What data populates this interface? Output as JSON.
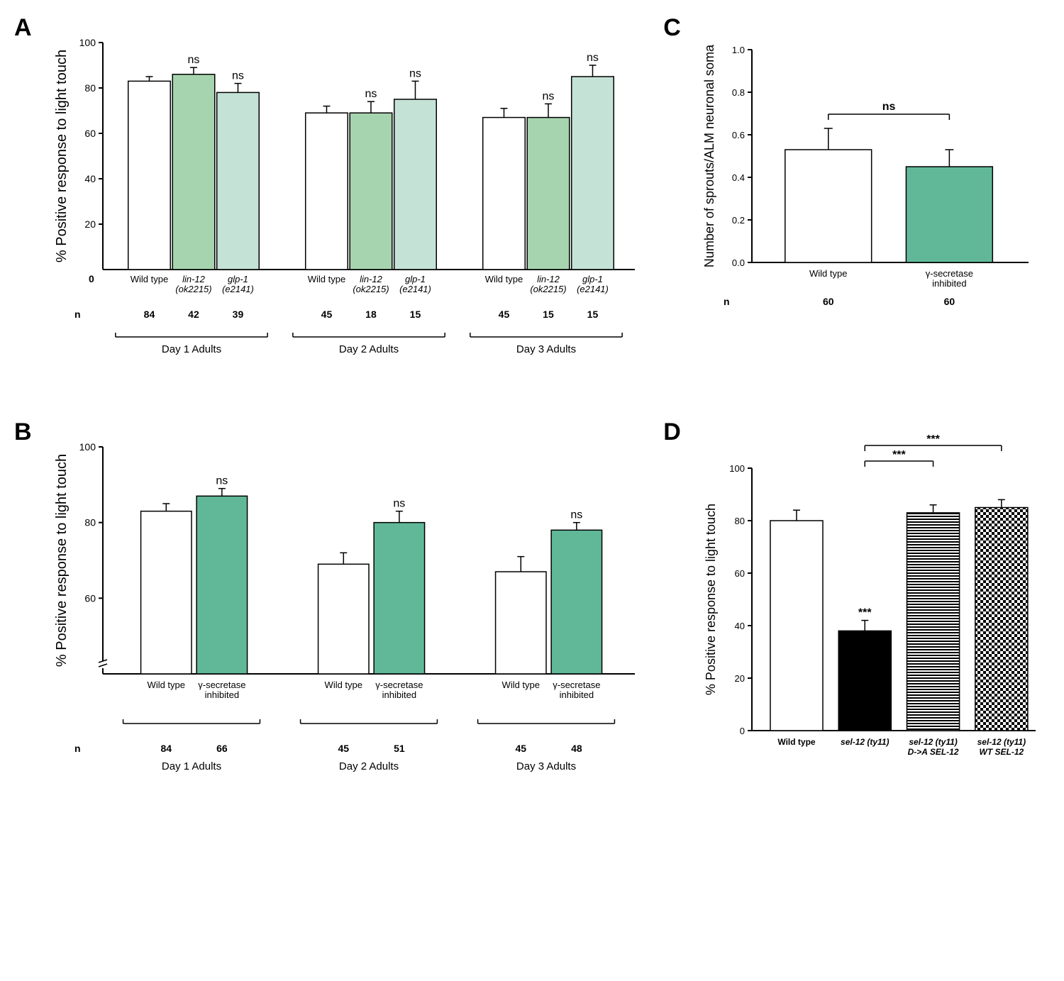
{
  "colors": {
    "white": "#ffffff",
    "lightGreen": "#a6d4ae",
    "paleGreen": "#c5e2d6",
    "midGreen": "#61b898",
    "black": "#000000",
    "axis": "#000000"
  },
  "font": {
    "axisTitle": 20,
    "axisTitleSmall": 18,
    "tick": 14,
    "tickSmall": 13,
    "category": 13,
    "categorySmall": 12,
    "sig": 16,
    "n": 14,
    "panelLabel": 34,
    "group": 15
  },
  "panelA": {
    "label": "A",
    "yTitle": "% Positive response to light touch",
    "ylim": [
      0,
      100
    ],
    "ytick_step": 20,
    "groups": [
      "Day 1 Adults",
      "Day 2 Adults",
      "Day 3 Adults"
    ],
    "bars": [
      {
        "cat": "Wild type",
        "val": 83,
        "err": 2,
        "fill": "#ffffff",
        "n": "84",
        "sig": ""
      },
      {
        "cat": "lin-12\n(ok2215)",
        "val": 86,
        "err": 3,
        "fill": "#a6d4ae",
        "n": "42",
        "sig": "ns",
        "italic": true
      },
      {
        "cat": "glp-1\n(e2141)",
        "val": 78,
        "err": 4,
        "fill": "#c5e2d6",
        "n": "39",
        "sig": "ns",
        "italic": true
      },
      {
        "cat": "Wild type",
        "val": 69,
        "err": 3,
        "fill": "#ffffff",
        "n": "45",
        "sig": ""
      },
      {
        "cat": "lin-12\n(ok2215)",
        "val": 69,
        "err": 5,
        "fill": "#a6d4ae",
        "n": "18",
        "sig": "ns",
        "italic": true
      },
      {
        "cat": "glp-1\n(e2141)",
        "val": 75,
        "err": 8,
        "fill": "#c5e2d6",
        "n": "15",
        "sig": "ns",
        "italic": true
      },
      {
        "cat": "Wild type",
        "val": 67,
        "err": 4,
        "fill": "#ffffff",
        "n": "45",
        "sig": ""
      },
      {
        "cat": "lin-12\n(ok2215)",
        "val": 67,
        "err": 6,
        "fill": "#a6d4ae",
        "n": "15",
        "sig": "ns",
        "italic": true
      },
      {
        "cat": "glp-1\n(e2141)",
        "val": 85,
        "err": 5,
        "fill": "#c5e2d6",
        "n": "15",
        "sig": "ns",
        "italic": true
      }
    ],
    "nRowLabel": "n",
    "zeroLabel": "0"
  },
  "panelB": {
    "label": "B",
    "yTitle": "% Positive response to light touch",
    "ylim": [
      40,
      100
    ],
    "yticks": [
      60,
      80,
      100
    ],
    "groups": [
      "Day 1 Adults",
      "Day 2 Adults",
      "Day 3 Adults"
    ],
    "bars": [
      {
        "cat": "Wild type",
        "val": 83,
        "err": 2,
        "fill": "#ffffff",
        "n": "84",
        "sig": ""
      },
      {
        "cat": "γ-secretase\ninhibited",
        "val": 87,
        "err": 2,
        "fill": "#61b898",
        "n": "66",
        "sig": "ns"
      },
      {
        "cat": "Wild type",
        "val": 69,
        "err": 3,
        "fill": "#ffffff",
        "n": "45",
        "sig": ""
      },
      {
        "cat": "γ-secretase\ninhibited",
        "val": 80,
        "err": 3,
        "fill": "#61b898",
        "n": "51",
        "sig": "ns"
      },
      {
        "cat": "Wild type",
        "val": 67,
        "err": 4,
        "fill": "#ffffff",
        "n": "45",
        "sig": ""
      },
      {
        "cat": "γ-secretase\ninhibited",
        "val": 78,
        "err": 2,
        "fill": "#61b898",
        "n": "48",
        "sig": "ns"
      }
    ],
    "nRowLabel": "n"
  },
  "panelC": {
    "label": "C",
    "yTitle": "Number of sprouts/ALM neuronal soma",
    "ylim": [
      0,
      1.0
    ],
    "ytick_step": 0.2,
    "sig": "ns",
    "bars": [
      {
        "cat": "Wild type",
        "val": 0.53,
        "err": 0.1,
        "fill": "#ffffff",
        "n": "60"
      },
      {
        "cat": "γ-secretase\ninhibited",
        "val": 0.45,
        "err": 0.08,
        "fill": "#61b898",
        "n": "60"
      }
    ],
    "nRowLabel": "n"
  },
  "panelD": {
    "label": "D",
    "yTitle": "% Positive response to light touch",
    "ylim": [
      0,
      100
    ],
    "ytick_step": 20,
    "bars": [
      {
        "cat": "Wild type",
        "val": 80,
        "err": 4,
        "fill": "#ffffff",
        "sig": ""
      },
      {
        "cat": "sel-12 (ty11)",
        "val": 38,
        "err": 4,
        "fill": "#000000",
        "sig": "***",
        "italic": true
      },
      {
        "cat": "sel-12 (ty11)\nD->A SEL-12",
        "val": 83,
        "err": 3,
        "fill": "hstripe",
        "italic": true
      },
      {
        "cat": "sel-12 (ty11)\nWT SEL-12",
        "val": 85,
        "err": 3,
        "fill": "checker",
        "italic": true
      }
    ],
    "compLines": [
      {
        "from": 1,
        "to": 2,
        "sig": "***"
      },
      {
        "from": 1,
        "to": 3,
        "sig": "***"
      }
    ]
  }
}
